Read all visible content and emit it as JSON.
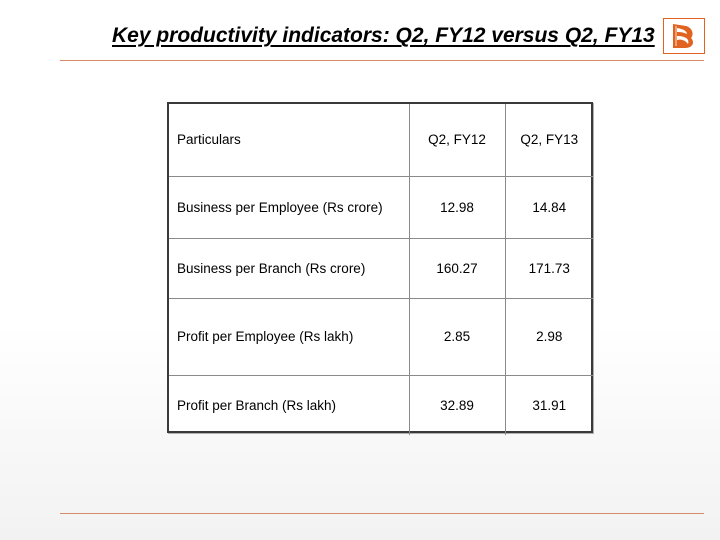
{
  "slide": {
    "title": "Key productivity indicators: Q2, FY12 versus Q2, FY13"
  },
  "logo": {
    "icon": "bank-of-baroda-logo",
    "color": "#e0631f"
  },
  "table": {
    "headers": [
      "Particulars",
      "Q2, FY12",
      "Q2, FY13"
    ],
    "rows": [
      {
        "particular": "Business per Employee (Rs crore)",
        "fy12": "12.98",
        "fy13": "14.84"
      },
      {
        "particular": "Business per Branch (Rs crore)",
        "fy12": "160.27",
        "fy13": "171.73"
      },
      {
        "particular": "Profit per Employee (Rs lakh)",
        "fy12": "2.85",
        "fy13": "2.98"
      },
      {
        "particular": "Profit per Branch (Rs lakh)",
        "fy12": "32.89",
        "fy13": "31.91"
      }
    ]
  },
  "colors": {
    "rule": "#d98a66",
    "table_border": "#3a3a3a",
    "cell_border": "#8a8a8a"
  }
}
